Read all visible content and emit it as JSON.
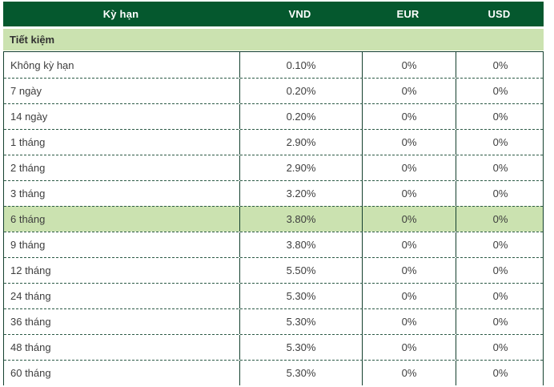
{
  "table": {
    "columns": [
      "Kỳ hạn",
      "VND",
      "EUR",
      "USD"
    ],
    "section_label": "Tiết kiệm",
    "rows": [
      {
        "term": "Không kỳ hạn",
        "vnd": "0.10%",
        "eur": "0%",
        "usd": "0%",
        "highlighted": false
      },
      {
        "term": "7 ngày",
        "vnd": "0.20%",
        "eur": "0%",
        "usd": "0%",
        "highlighted": false
      },
      {
        "term": "14 ngày",
        "vnd": "0.20%",
        "eur": "0%",
        "usd": "0%",
        "highlighted": false
      },
      {
        "term": "1 tháng",
        "vnd": "2.90%",
        "eur": "0%",
        "usd": "0%",
        "highlighted": false
      },
      {
        "term": "2 tháng",
        "vnd": "2.90%",
        "eur": "0%",
        "usd": "0%",
        "highlighted": false
      },
      {
        "term": "3 tháng",
        "vnd": "3.20%",
        "eur": "0%",
        "usd": "0%",
        "highlighted": false
      },
      {
        "term": "6 tháng",
        "vnd": "3.80%",
        "eur": "0%",
        "usd": "0%",
        "highlighted": true
      },
      {
        "term": "9 tháng",
        "vnd": "3.80%",
        "eur": "0%",
        "usd": "0%",
        "highlighted": false
      },
      {
        "term": "12 tháng",
        "vnd": "5.50%",
        "eur": "0%",
        "usd": "0%",
        "highlighted": false
      },
      {
        "term": "24 tháng",
        "vnd": "5.30%",
        "eur": "0%",
        "usd": "0%",
        "highlighted": false
      },
      {
        "term": "36 tháng",
        "vnd": "5.30%",
        "eur": "0%",
        "usd": "0%",
        "highlighted": false
      },
      {
        "term": "48 tháng",
        "vnd": "5.30%",
        "eur": "0%",
        "usd": "0%",
        "highlighted": false
      },
      {
        "term": "60 tháng",
        "vnd": "5.30%",
        "eur": "0%",
        "usd": "0%",
        "highlighted": false
      }
    ]
  },
  "colors": {
    "header_bg": "#05582e",
    "header_fg": "#ffffff",
    "section_bg": "#cbe2b0",
    "highlight_bg": "#cbe2b0",
    "border": "#14402e",
    "text": "#3e3e3e"
  }
}
